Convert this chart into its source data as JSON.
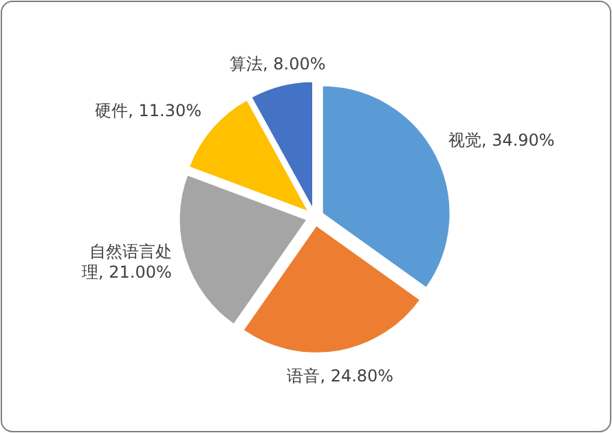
{
  "chart_data": {
    "type": "pie",
    "categories": [
      "视觉",
      "语音",
      "自然语言处理",
      "硬件",
      "算法"
    ],
    "values": [
      34.9,
      24.8,
      21.0,
      11.3,
      8.0
    ],
    "value_labels": [
      "34.90%",
      "24.80%",
      "21.00%",
      "11.30%",
      "8.00%"
    ],
    "colors": [
      "#5b9bd5",
      "#ed7d31",
      "#a5a5a5",
      "#ffc000",
      "#4472c4"
    ]
  }
}
